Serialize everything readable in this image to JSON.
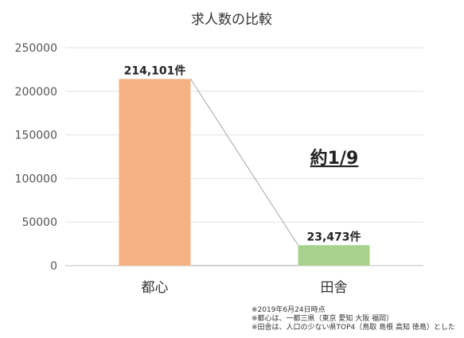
{
  "chart_data": {
    "type": "bar",
    "title": "求人数の比較",
    "categories": [
      "都心",
      "田舎"
    ],
    "values": [
      214101,
      23473
    ],
    "data_labels": [
      "214,101件",
      "23,473件"
    ],
    "ylim": [
      0,
      250000
    ],
    "yticks": [
      0,
      50000,
      100000,
      150000,
      200000,
      250000
    ],
    "grid": true,
    "colors": [
      "#f4b183",
      "#a9d18e"
    ],
    "annotation": "約1/9"
  },
  "footnotes": [
    "※2019年6月24日時点",
    "※都心は、一都三県（東京 愛知 大阪 福岡）",
    "※田舎は、人口の少ない県TOP4（鳥取 島根 高知 徳島）とした"
  ]
}
